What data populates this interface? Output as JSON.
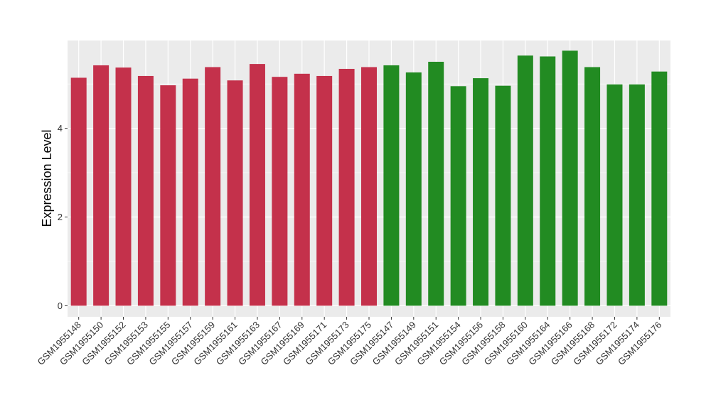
{
  "chart_data": {
    "type": "bar",
    "title": "",
    "xlabel": "",
    "ylabel": "Expression Level",
    "ylim": [
      -0.25,
      5.98
    ],
    "yticks": [
      0,
      2,
      4
    ],
    "grid": true,
    "categories": [
      "GSM1955148",
      "GSM1955150",
      "GSM1955152",
      "GSM1955153",
      "GSM1955155",
      "GSM1955157",
      "GSM1955159",
      "GSM1955161",
      "GSM1955163",
      "GSM1955167",
      "GSM1955169",
      "GSM1955171",
      "GSM1955173",
      "GSM1955175",
      "GSM1955147",
      "GSM1955149",
      "GSM1955151",
      "GSM1955154",
      "GSM1955156",
      "GSM1955158",
      "GSM1955160",
      "GSM1955164",
      "GSM1955166",
      "GSM1955168",
      "GSM1955172",
      "GSM1955174",
      "GSM1955176"
    ],
    "values": [
      5.14,
      5.42,
      5.37,
      5.18,
      4.97,
      5.12,
      5.38,
      5.08,
      5.45,
      5.16,
      5.23,
      5.18,
      5.34,
      5.38,
      5.42,
      5.26,
      5.5,
      4.95,
      5.13,
      4.96,
      5.64,
      5.62,
      5.75,
      5.38,
      4.99,
      4.99,
      5.28
    ],
    "group_colors": [
      "#c4314b",
      "#c4314b",
      "#c4314b",
      "#c4314b",
      "#c4314b",
      "#c4314b",
      "#c4314b",
      "#c4314b",
      "#c4314b",
      "#c4314b",
      "#c4314b",
      "#c4314b",
      "#c4314b",
      "#c4314b",
      "#228b22",
      "#228b22",
      "#228b22",
      "#228b22",
      "#228b22",
      "#228b22",
      "#228b22",
      "#228b22",
      "#228b22",
      "#228b22",
      "#228b22",
      "#228b22",
      "#228b22"
    ],
    "panel_background": "#ebebeb",
    "gridline_color": "#ffffff"
  }
}
